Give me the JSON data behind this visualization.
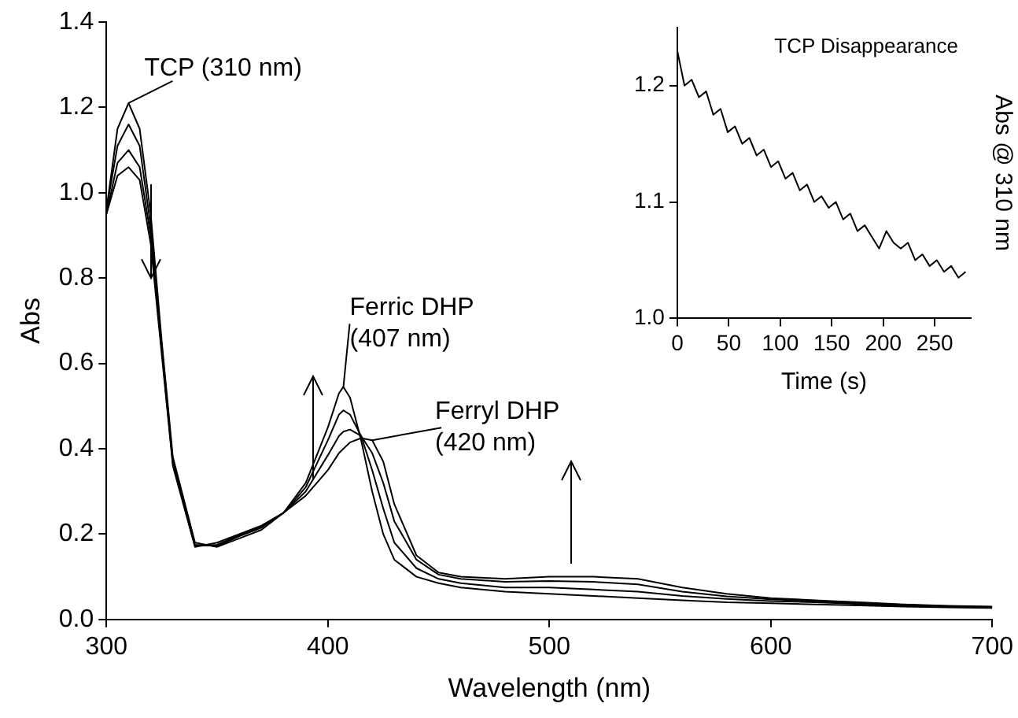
{
  "chart_data": [
    {
      "type": "line",
      "xlabel": "Wavelength (nm)",
      "ylabel": "Abs",
      "xlim": [
        300,
        700
      ],
      "xticks": [
        300,
        400,
        500,
        600,
        700
      ],
      "ylim": [
        0,
        1.4
      ],
      "yticks": [
        {
          "value": 0,
          "label": "0.0"
        },
        {
          "value": 0.2,
          "label": "0.2"
        },
        {
          "value": 0.4,
          "label": "0.4"
        },
        {
          "value": 0.6,
          "label": "0.6"
        },
        {
          "value": 0.8,
          "label": "0.8"
        },
        {
          "value": 1,
          "label": "1.0"
        },
        {
          "value": 1.2,
          "label": "1.2"
        },
        {
          "value": 1.4,
          "label": "1.4"
        }
      ],
      "marker": "none",
      "line_style": "solid",
      "legend": false,
      "x": [
        300,
        305,
        310,
        315,
        320,
        325,
        330,
        340,
        350,
        360,
        370,
        380,
        390,
        400,
        405,
        407,
        410,
        415,
        420,
        425,
        430,
        440,
        450,
        460,
        480,
        500,
        520,
        540,
        560,
        580,
        600,
        620,
        640,
        660,
        680,
        700
      ],
      "series": [
        {
          "color": "#000000",
          "values": [
            0.96,
            1.15,
            1.21,
            1.15,
            0.95,
            0.65,
            0.38,
            0.18,
            0.17,
            0.19,
            0.21,
            0.25,
            0.32,
            0.45,
            0.53,
            0.545,
            0.52,
            0.42,
            0.3,
            0.2,
            0.14,
            0.1,
            0.085,
            0.075,
            0.065,
            0.06,
            0.055,
            0.05,
            0.045,
            0.04,
            0.038,
            0.035,
            0.033,
            0.03,
            0.028,
            0.027
          ]
        },
        {
          "color": "#000000",
          "values": [
            0.96,
            1.11,
            1.16,
            1.11,
            0.92,
            0.64,
            0.37,
            0.175,
            0.172,
            0.195,
            0.215,
            0.25,
            0.31,
            0.42,
            0.48,
            0.49,
            0.48,
            0.43,
            0.35,
            0.26,
            0.18,
            0.12,
            0.095,
            0.085,
            0.075,
            0.075,
            0.07,
            0.065,
            0.055,
            0.048,
            0.043,
            0.04,
            0.036,
            0.032,
            0.03,
            0.028
          ]
        },
        {
          "color": "#000000",
          "values": [
            0.95,
            1.07,
            1.1,
            1.06,
            0.9,
            0.63,
            0.365,
            0.172,
            0.175,
            0.198,
            0.218,
            0.25,
            0.3,
            0.385,
            0.43,
            0.44,
            0.445,
            0.43,
            0.39,
            0.32,
            0.23,
            0.14,
            0.105,
            0.095,
            0.088,
            0.09,
            0.088,
            0.082,
            0.065,
            0.054,
            0.047,
            0.043,
            0.038,
            0.034,
            0.031,
            0.029
          ]
        },
        {
          "color": "#000000",
          "values": [
            0.95,
            1.04,
            1.06,
            1.03,
            0.88,
            0.62,
            0.36,
            0.17,
            0.18,
            0.2,
            0.22,
            0.25,
            0.29,
            0.35,
            0.39,
            0.4,
            0.415,
            0.425,
            0.42,
            0.37,
            0.27,
            0.15,
            0.11,
            0.1,
            0.095,
            0.1,
            0.1,
            0.095,
            0.075,
            0.06,
            0.05,
            0.045,
            0.04,
            0.035,
            0.032,
            0.03
          ]
        }
      ],
      "annotations": [
        {
          "text": "TCP (310 nm)",
          "x": 310,
          "y": 1.21
        },
        {
          "text": "Ferric DHP\n(407 nm)",
          "x": 407,
          "y": 0.545
        },
        {
          "text": "Ferryl DHP\n(420 nm)",
          "x": 420,
          "y": 0.42
        }
      ]
    },
    {
      "type": "line",
      "title": "TCP Disappearance",
      "xlabel": "Time (s)",
      "ylabel": "Abs @ 310 nm",
      "xlim": [
        0,
        285
      ],
      "xticks": [
        0,
        50,
        100,
        150,
        200,
        250
      ],
      "ylim": [
        1.0,
        1.25
      ],
      "yticks": [
        {
          "value": 1,
          "label": "1.0"
        },
        {
          "value": 1.1,
          "label": "1.1"
        },
        {
          "value": 1.2,
          "label": "1.2"
        }
      ],
      "marker": "none",
      "line_style": "solid",
      "legend": false,
      "x": [
        0,
        7,
        14,
        21,
        28,
        35,
        42,
        49,
        56,
        63,
        70,
        77,
        84,
        91,
        98,
        105,
        112,
        119,
        126,
        133,
        140,
        147,
        154,
        161,
        168,
        175,
        182,
        189,
        196,
        203,
        210,
        217,
        224,
        231,
        238,
        245,
        252,
        259,
        266,
        273,
        280
      ],
      "series": [
        {
          "color": "#000000",
          "values": [
            1.23,
            1.2,
            1.205,
            1.19,
            1.195,
            1.175,
            1.18,
            1.16,
            1.165,
            1.15,
            1.155,
            1.14,
            1.145,
            1.13,
            1.135,
            1.12,
            1.125,
            1.11,
            1.115,
            1.1,
            1.105,
            1.095,
            1.1,
            1.085,
            1.09,
            1.075,
            1.08,
            1.07,
            1.06,
            1.075,
            1.065,
            1.06,
            1.065,
            1.05,
            1.055,
            1.045,
            1.05,
            1.04,
            1.045,
            1.035,
            1.04
          ]
        }
      ]
    }
  ]
}
